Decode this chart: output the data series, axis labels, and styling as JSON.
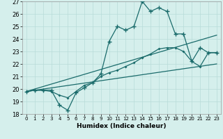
{
  "title": "",
  "xlabel": "Humidex (Indice chaleur)",
  "background_color": "#d5efec",
  "grid_color": "#b8dbd8",
  "line_color": "#1a6b6b",
  "xlim": [
    -0.5,
    23.5
  ],
  "ylim": [
    18,
    27
  ],
  "yticks": [
    18,
    19,
    20,
    21,
    22,
    23,
    24,
    25,
    26,
    27
  ],
  "xticks": [
    0,
    1,
    2,
    3,
    4,
    5,
    6,
    7,
    8,
    9,
    10,
    11,
    12,
    13,
    14,
    15,
    16,
    17,
    18,
    19,
    20,
    21,
    22,
    23
  ],
  "series1_x": [
    0,
    1,
    2,
    3,
    4,
    5,
    6,
    7,
    8,
    9,
    10,
    11,
    12,
    13,
    14,
    15,
    16,
    17,
    18,
    19,
    20,
    21,
    22,
    23
  ],
  "series1_y": [
    19.8,
    19.9,
    19.9,
    19.9,
    18.7,
    18.3,
    19.7,
    20.1,
    20.5,
    21.2,
    23.8,
    25.0,
    24.7,
    25.0,
    27.0,
    26.2,
    26.5,
    26.2,
    24.4,
    24.4,
    22.2,
    23.3,
    22.9,
    22.9
  ],
  "series2_x": [
    0,
    23
  ],
  "series2_y": [
    19.8,
    24.3
  ],
  "series3_x": [
    0,
    23
  ],
  "series3_y": [
    19.8,
    22.0
  ],
  "series4_x": [
    0,
    1,
    2,
    3,
    4,
    5,
    6,
    7,
    8,
    9,
    10,
    11,
    12,
    13,
    14,
    15,
    16,
    17,
    18,
    19,
    20,
    21,
    22,
    23
  ],
  "series4_y": [
    19.8,
    19.9,
    19.9,
    19.8,
    19.5,
    19.3,
    19.8,
    20.3,
    20.5,
    21.0,
    21.3,
    21.5,
    21.8,
    22.1,
    22.5,
    22.8,
    23.2,
    23.3,
    23.3,
    23.0,
    22.2,
    21.8,
    22.9,
    22.9
  ]
}
